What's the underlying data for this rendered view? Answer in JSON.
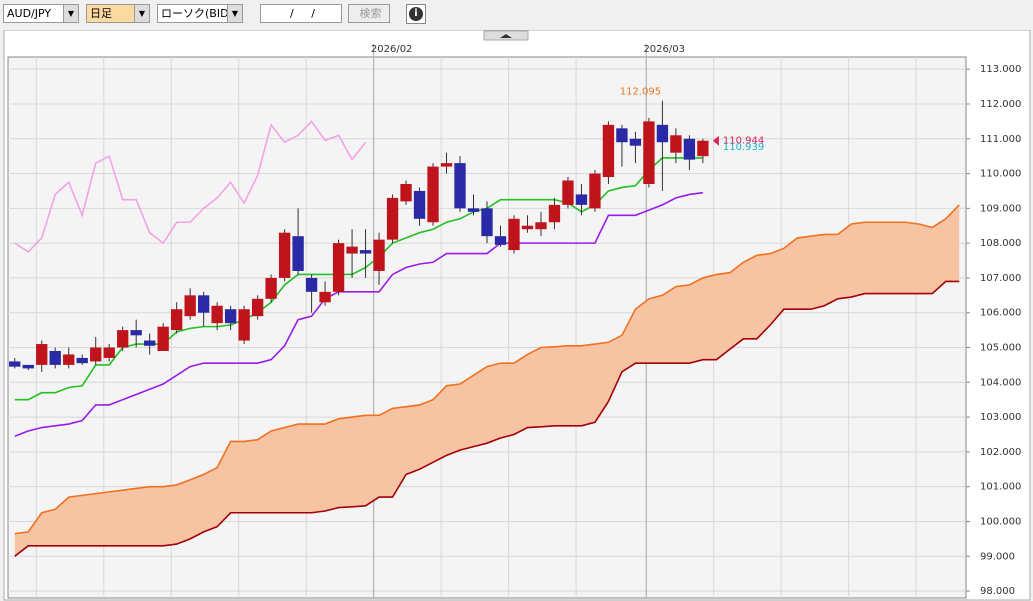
{
  "toolbar": {
    "symbol": "AUD/JPY",
    "period": "日足",
    "chart_style": "ローソク(BID)",
    "date_input": "/ /",
    "search": "検索"
  },
  "chart_data": {
    "type": "candlestick",
    "xlim": [
      -0.5,
      70.5
    ],
    "xticks": [
      {
        "value": 26.6,
        "label": "2026/02"
      },
      {
        "value": 46.8,
        "label": "2026/03"
      }
    ],
    "xgrid": [
      1.6,
      6.6,
      11.6,
      16.6,
      21.6,
      26.6,
      31.6,
      36.6,
      41.6,
      46.8,
      51.8,
      56.8,
      61.8,
      66.8
    ],
    "ylim": [
      97.8,
      113.35
    ],
    "yticks": [
      {
        "value": 98,
        "label": "98.000"
      },
      {
        "value": 99,
        "label": "99.000"
      },
      {
        "value": 100,
        "label": "100.000"
      },
      {
        "value": 101,
        "label": "101.000"
      },
      {
        "value": 102,
        "label": "102.000"
      },
      {
        "value": 103,
        "label": "103.000"
      },
      {
        "value": 104,
        "label": "104.000"
      },
      {
        "value": 105,
        "label": "105.000"
      },
      {
        "value": 106,
        "label": "106.000"
      },
      {
        "value": 107,
        "label": "107.000"
      },
      {
        "value": 108,
        "label": "108.000"
      },
      {
        "value": 109,
        "label": "109.000"
      },
      {
        "value": 110,
        "label": "110.000"
      },
      {
        "value": 111,
        "label": "111.000"
      },
      {
        "value": 112,
        "label": "112.000"
      },
      {
        "value": 113,
        "label": "113.000"
      }
    ],
    "grid": true,
    "up_color": "#c0141c",
    "down_color": "#2a2aa6",
    "candles": {
      "open": [
        104.6,
        104.5,
        104.5,
        104.9,
        104.5,
        104.7,
        104.6,
        104.7,
        105.0,
        105.5,
        105.2,
        104.9,
        105.5,
        105.9,
        106.5,
        105.7,
        106.1,
        105.2,
        105.9,
        106.4,
        107.0,
        108.2,
        107.0,
        106.3,
        106.6,
        107.7,
        107.8,
        107.2,
        108.1,
        109.2,
        109.5,
        108.6,
        110.2,
        110.3,
        109.0,
        109.0,
        108.2,
        107.8,
        108.4,
        108.4,
        108.6,
        109.1,
        109.4,
        109.0,
        109.9,
        111.3,
        111.0,
        109.7,
        111.4,
        110.6,
        111.0,
        110.5
      ],
      "high": [
        104.7,
        104.5,
        105.2,
        105.0,
        105.0,
        104.8,
        105.3,
        105.1,
        105.6,
        105.8,
        105.4,
        105.7,
        106.3,
        106.7,
        106.6,
        106.3,
        106.2,
        106.2,
        106.5,
        107.1,
        108.4,
        109.0,
        107.1,
        106.9,
        108.1,
        108.4,
        108.4,
        108.3,
        109.4,
        109.8,
        109.6,
        110.3,
        110.6,
        110.5,
        109.4,
        109.2,
        108.5,
        108.8,
        108.8,
        108.9,
        109.3,
        109.9,
        109.7,
        110.1,
        111.5,
        111.4,
        111.2,
        111.6,
        112.095,
        111.3,
        111.1,
        111.0
      ],
      "low": [
        104.4,
        104.35,
        104.3,
        104.4,
        104.4,
        104.5,
        104.5,
        104.6,
        104.9,
        105.0,
        104.8,
        104.9,
        105.4,
        105.8,
        105.6,
        105.5,
        105.5,
        105.1,
        105.8,
        106.3,
        106.9,
        107.1,
        106.0,
        106.2,
        106.5,
        107.0,
        107.0,
        106.8,
        108.0,
        109.1,
        108.5,
        108.5,
        110.0,
        108.9,
        108.8,
        108.0,
        107.9,
        107.7,
        108.3,
        108.2,
        108.4,
        109.0,
        108.8,
        108.9,
        109.7,
        110.2,
        110.3,
        109.6,
        109.5,
        110.3,
        110.1,
        110.3
      ],
      "close": [
        104.45,
        104.4,
        105.1,
        104.5,
        104.8,
        104.55,
        105.0,
        105.0,
        105.5,
        105.35,
        105.05,
        105.6,
        106.1,
        106.5,
        106.0,
        106.2,
        105.7,
        106.1,
        106.4,
        107.0,
        108.3,
        107.2,
        106.6,
        106.6,
        108.0,
        107.9,
        107.7,
        108.1,
        109.3,
        109.7,
        108.7,
        110.2,
        110.3,
        109.0,
        108.9,
        108.2,
        107.95,
        108.7,
        108.5,
        108.6,
        109.1,
        109.8,
        109.1,
        110.0,
        111.4,
        110.9,
        110.8,
        111.5,
        110.9,
        111.1,
        110.4,
        110.944
      ]
    },
    "lines": [
      {
        "color": "#f4a2e6",
        "values": [
          108.0,
          107.75,
          108.15,
          109.4,
          109.75,
          108.8,
          110.3,
          110.5,
          109.25,
          109.25,
          108.3,
          108.0,
          108.6,
          108.6,
          109.0,
          109.3,
          109.75,
          109.15,
          109.95,
          111.4,
          110.9,
          111.1,
          111.5,
          110.95,
          111.1,
          110.4,
          110.9
        ]
      },
      {
        "color": "#9a1be8",
        "values": [
          102.45,
          102.6,
          102.7,
          102.75,
          102.8,
          102.9,
          103.35,
          103.35,
          103.5,
          103.65,
          103.8,
          103.95,
          104.2,
          104.45,
          104.55,
          104.55,
          104.55,
          104.55,
          104.55,
          104.65,
          105.05,
          105.8,
          105.9,
          106.4,
          106.6,
          106.6,
          106.6,
          106.6,
          107.1,
          107.3,
          107.4,
          107.45,
          107.7,
          107.7,
          107.7,
          107.7,
          108.0,
          108.0,
          108.0,
          108.0,
          108.0,
          108.0,
          108.0,
          108.0,
          108.8,
          108.8,
          108.8,
          108.95,
          109.1,
          109.3,
          109.4,
          109.45
        ]
      },
      {
        "color": "#22c022",
        "values": [
          103.5,
          103.5,
          103.7,
          103.7,
          103.85,
          103.9,
          104.5,
          104.5,
          105.0,
          105.1,
          105.1,
          105.1,
          105.45,
          105.55,
          105.6,
          105.6,
          105.65,
          105.8,
          106.0,
          106.3,
          106.8,
          107.1,
          107.1,
          107.1,
          107.1,
          107.1,
          107.3,
          107.6,
          108.0,
          108.15,
          108.3,
          108.4,
          108.6,
          108.7,
          108.9,
          109.0,
          109.25,
          109.25,
          109.25,
          109.25,
          109.25,
          109.15,
          108.9,
          109.1,
          109.5,
          109.6,
          109.65,
          110.1,
          110.45,
          110.45,
          110.45,
          110.45
        ]
      }
    ],
    "cloud": {
      "fill": "#f6c4a2",
      "span_a": {
        "color": "#f07020",
        "values": [
          99.65,
          99.7,
          100.25,
          100.35,
          100.7,
          100.75,
          100.8,
          100.85,
          100.9,
          100.95,
          101.0,
          101.0,
          101.05,
          101.2,
          101.35,
          101.55,
          102.3,
          102.3,
          102.35,
          102.6,
          102.7,
          102.8,
          102.8,
          102.8,
          102.95,
          103.0,
          103.05,
          103.05,
          103.25,
          103.3,
          103.35,
          103.5,
          103.9,
          103.95,
          104.2,
          104.45,
          104.55,
          104.55,
          104.8,
          105.0,
          105.02,
          105.05,
          105.05,
          105.1,
          105.15,
          105.35,
          106.1,
          106.4,
          106.5,
          106.75,
          106.8,
          107.0,
          107.1,
          107.15,
          107.45,
          107.65,
          107.7,
          107.85,
          108.15,
          108.2,
          108.25,
          108.25,
          108.55,
          108.6,
          108.6,
          108.6,
          108.6,
          108.55,
          108.45,
          108.7,
          109.1
        ]
      },
      "span_b": {
        "color": "#a30008",
        "values": [
          99.0,
          99.3,
          99.3,
          99.3,
          99.3,
          99.3,
          99.3,
          99.3,
          99.3,
          99.3,
          99.3,
          99.3,
          99.35,
          99.5,
          99.7,
          99.85,
          100.25,
          100.25,
          100.25,
          100.25,
          100.25,
          100.25,
          100.25,
          100.3,
          100.4,
          100.42,
          100.45,
          100.7,
          100.7,
          101.35,
          101.5,
          101.7,
          101.9,
          102.05,
          102.15,
          102.25,
          102.4,
          102.5,
          102.7,
          102.72,
          102.75,
          102.75,
          102.75,
          102.85,
          103.45,
          104.3,
          104.55,
          104.55,
          104.55,
          104.55,
          104.55,
          104.65,
          104.65,
          104.95,
          105.25,
          105.25,
          105.65,
          106.1,
          106.1,
          106.1,
          106.2,
          106.4,
          106.45,
          106.55,
          106.55,
          106.55,
          106.55,
          106.55,
          106.55,
          106.9,
          106.9
        ]
      }
    },
    "annotations": [
      {
        "value": 112.095,
        "color": "#e87722"
      },
      {
        "value": 110.944,
        "color": "#e0205a"
      },
      {
        "value": 110.939,
        "color": "#18b4c8"
      }
    ]
  }
}
